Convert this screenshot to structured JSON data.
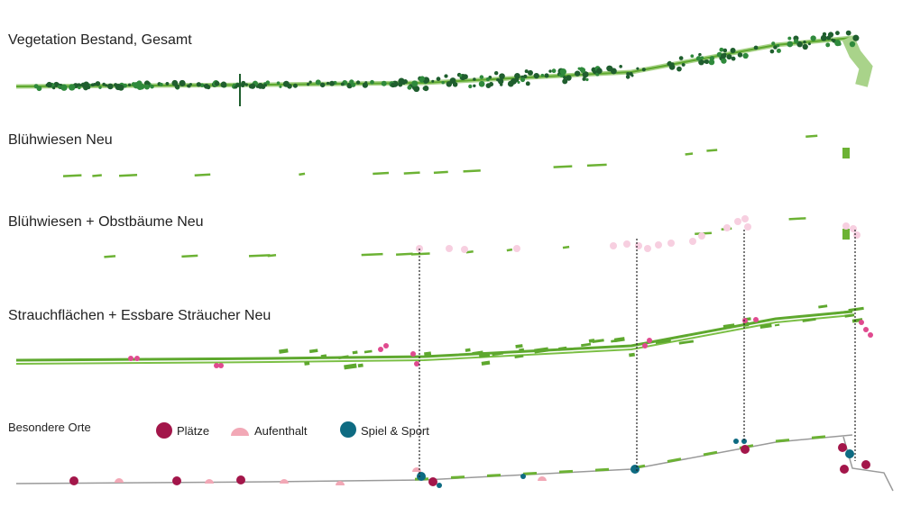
{
  "sections": [
    {
      "title": "Vegetation Bestand, Gesamt"
    },
    {
      "title": "Blühwiesen Neu"
    },
    {
      "title": "Blühwiesen + Obstbäume Neu"
    },
    {
      "title": "Strauchflächen + Essbare Sträucher Neu"
    },
    {
      "title": "Besondere Orte"
    }
  ],
  "legend": {
    "items": [
      {
        "label": "Plätze"
      },
      {
        "label": "Aufenthalt"
      },
      {
        "label": "Spiel & Sport"
      }
    ]
  }
}
